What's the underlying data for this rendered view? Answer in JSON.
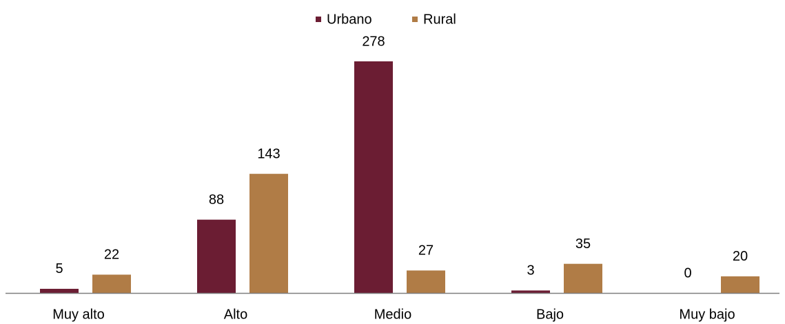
{
  "chart_data": {
    "type": "bar",
    "categories": [
      "Muy alto",
      "Alto",
      "Medio",
      "Bajo",
      "Muy bajo"
    ],
    "series": [
      {
        "name": "Urbano",
        "color": "#6b1d33",
        "values": [
          5,
          88,
          278,
          3,
          0
        ]
      },
      {
        "name": "Rural",
        "color": "#b07c46",
        "values": [
          22,
          143,
          27,
          35,
          20
        ]
      }
    ],
    "legend": "top"
  }
}
